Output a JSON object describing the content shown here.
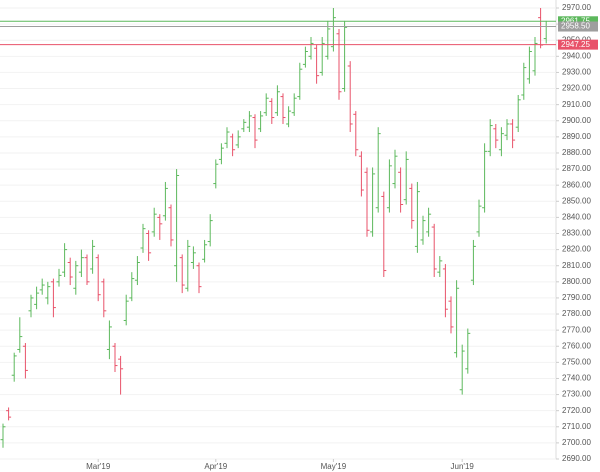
{
  "chart_data": {
    "type": "ohlc",
    "up_color": "#5cb85c",
    "down_color": "#e8526a",
    "ylim": [
      2690,
      2970
    ],
    "yticks": [
      {
        "value": 2690,
        "label": "2690.00"
      },
      {
        "value": 2700,
        "label": "2700.00"
      },
      {
        "value": 2710,
        "label": "2710.00"
      },
      {
        "value": 2720,
        "label": "2720.00"
      },
      {
        "value": 2730,
        "label": "2730.00"
      },
      {
        "value": 2740,
        "label": "2740.00"
      },
      {
        "value": 2750,
        "label": "2750.00"
      },
      {
        "value": 2760,
        "label": "2760.00"
      },
      {
        "value": 2770,
        "label": "2770.00"
      },
      {
        "value": 2780,
        "label": "2780.00"
      },
      {
        "value": 2790,
        "label": "2790.00"
      },
      {
        "value": 2800,
        "label": "2800.00"
      },
      {
        "value": 2810,
        "label": "2810.00"
      },
      {
        "value": 2820,
        "label": "2820.00"
      },
      {
        "value": 2830,
        "label": "2830.00"
      },
      {
        "value": 2840,
        "label": "2840.00"
      },
      {
        "value": 2850,
        "label": "2850.00"
      },
      {
        "value": 2860,
        "label": "2860.00"
      },
      {
        "value": 2870,
        "label": "2870.00"
      },
      {
        "value": 2880,
        "label": "2880.00"
      },
      {
        "value": 2890,
        "label": "2890.00"
      },
      {
        "value": 2900,
        "label": "2900.00"
      },
      {
        "value": 2910,
        "label": "2910.00"
      },
      {
        "value": 2920,
        "label": "2920.00"
      },
      {
        "value": 2930,
        "label": "2930.00"
      },
      {
        "value": 2940,
        "label": "2940.00"
      },
      {
        "value": 2950,
        "label": "2950.00"
      },
      {
        "value": 2960,
        "label": "2960.00"
      },
      {
        "value": 2970,
        "label": "2970.00"
      }
    ],
    "grid": true,
    "price_lines": [
      {
        "value": 2961.75,
        "label": "2961.75",
        "color": "#5cb85c"
      },
      {
        "value": 2958.5,
        "label": "2958.50",
        "color": "#9e9e9e"
      },
      {
        "value": 2947.25,
        "label": "2947.25",
        "color": "#e8526a"
      }
    ],
    "categories": [
      null,
      null,
      null,
      null,
      null,
      null,
      null,
      null,
      null,
      null,
      null,
      null,
      null,
      null,
      null,
      null,
      null,
      "Mar'19",
      null,
      null,
      null,
      null,
      null,
      null,
      null,
      null,
      null,
      null,
      null,
      null,
      null,
      null,
      null,
      null,
      null,
      null,
      null,
      null,
      "Apr'19",
      null,
      null,
      null,
      null,
      null,
      null,
      null,
      null,
      null,
      null,
      null,
      null,
      null,
      null,
      null,
      null,
      null,
      null,
      null,
      null,
      "May'19",
      null,
      null,
      null,
      null,
      null,
      null,
      null,
      null,
      null,
      null,
      null,
      null,
      null,
      null,
      null,
      null,
      null,
      null,
      null,
      null,
      null,
      null,
      "Jun'19",
      null,
      null,
      null,
      null,
      null,
      null,
      null,
      null,
      null,
      null,
      null,
      null,
      null,
      null,
      null
    ],
    "ohlc": [
      [
        2702,
        2712,
        2697,
        2710
      ],
      [
        2720,
        2722,
        2714,
        2716
      ],
      [
        2742,
        2756,
        2738,
        2754
      ],
      [
        2758,
        2778,
        2756,
        2766
      ],
      [
        2760,
        2762,
        2740,
        2745
      ],
      [
        2782,
        2792,
        2778,
        2790
      ],
      [
        2786,
        2797,
        2783,
        2793
      ],
      [
        2795,
        2802,
        2792,
        2798
      ],
      [
        2790,
        2800,
        2786,
        2797
      ],
      [
        2800,
        2802,
        2778,
        2784
      ],
      [
        2800,
        2808,
        2797,
        2804
      ],
      [
        2806,
        2824,
        2803,
        2820
      ],
      [
        2812,
        2815,
        2798,
        2803
      ],
      [
        2796,
        2813,
        2792,
        2810
      ],
      [
        2806,
        2820,
        2803,
        2815
      ],
      [
        2815,
        2817,
        2798,
        2800
      ],
      [
        2808,
        2826,
        2805,
        2822
      ],
      [
        2815,
        2817,
        2788,
        2792
      ],
      [
        2800,
        2802,
        2778,
        2782
      ],
      [
        2758,
        2776,
        2752,
        2772
      ],
      [
        2760,
        2762,
        2744,
        2748
      ],
      [
        2752,
        2754,
        2730,
        2746
      ],
      [
        2776,
        2792,
        2773,
        2788
      ],
      [
        2790,
        2806,
        2788,
        2802
      ],
      [
        2801,
        2816,
        2798,
        2812
      ],
      [
        2821,
        2836,
        2818,
        2833
      ],
      [
        2830,
        2832,
        2813,
        2818
      ],
      [
        2831,
        2846,
        2828,
        2842
      ],
      [
        2840,
        2842,
        2826,
        2836
      ],
      [
        2841,
        2862,
        2838,
        2858
      ],
      [
        2846,
        2848,
        2822,
        2826
      ],
      [
        2810,
        2870,
        2800,
        2866
      ],
      [
        2815,
        2817,
        2793,
        2798
      ],
      [
        2796,
        2826,
        2794,
        2822
      ],
      [
        2812,
        2822,
        2808,
        2818
      ],
      [
        2810,
        2812,
        2793,
        2797
      ],
      [
        2814,
        2826,
        2812,
        2823
      ],
      [
        2825,
        2842,
        2822,
        2838
      ],
      [
        2861,
        2876,
        2858,
        2873
      ],
      [
        2876,
        2886,
        2873,
        2883
      ],
      [
        2886,
        2896,
        2883,
        2893
      ],
      [
        2890,
        2892,
        2878,
        2882
      ],
      [
        2885,
        2894,
        2883,
        2890
      ],
      [
        2895,
        2901,
        2893,
        2899
      ],
      [
        2896,
        2906,
        2893,
        2903
      ],
      [
        2902,
        2904,
        2883,
        2888
      ],
      [
        2895,
        2906,
        2893,
        2903
      ],
      [
        2905,
        2917,
        2903,
        2914
      ],
      [
        2912,
        2914,
        2898,
        2902
      ],
      [
        2905,
        2922,
        2903,
        2918
      ],
      [
        2915,
        2917,
        2898,
        2902
      ],
      [
        2898,
        2909,
        2896,
        2906
      ],
      [
        2905,
        2917,
        2903,
        2914
      ],
      [
        2915,
        2936,
        2913,
        2932
      ],
      [
        2935,
        2946,
        2933,
        2943
      ],
      [
        2940,
        2952,
        2938,
        2948
      ],
      [
        2945,
        2947,
        2923,
        2928
      ],
      [
        2930,
        2952,
        2928,
        2948
      ],
      [
        2940,
        2962,
        2938,
        2957
      ],
      [
        2946,
        2970,
        2943,
        2964
      ],
      [
        2954,
        2957,
        2913,
        2918
      ],
      [
        2920,
        2962,
        2918,
        2958
      ],
      [
        2934,
        2937,
        2893,
        2898
      ],
      [
        2904,
        2906,
        2878,
        2882
      ],
      [
        2878,
        2881,
        2853,
        2857
      ],
      [
        2868,
        2871,
        2828,
        2832
      ],
      [
        2831,
        2871,
        2828,
        2867
      ],
      [
        2846,
        2896,
        2843,
        2892
      ],
      [
        2853,
        2856,
        2803,
        2807
      ],
      [
        2846,
        2876,
        2843,
        2872
      ],
      [
        2861,
        2882,
        2858,
        2878
      ],
      [
        2868,
        2871,
        2843,
        2848
      ],
      [
        2851,
        2881,
        2848,
        2876
      ],
      [
        2858,
        2861,
        2833,
        2838
      ],
      [
        2822,
        2862,
        2818,
        2856
      ],
      [
        2826,
        2841,
        2823,
        2838
      ],
      [
        2831,
        2846,
        2828,
        2842
      ],
      [
        2834,
        2836,
        2803,
        2808
      ],
      [
        2806,
        2816,
        2803,
        2813
      ],
      [
        2808,
        2811,
        2778,
        2783
      ],
      [
        2788,
        2791,
        2768,
        2772
      ],
      [
        2756,
        2801,
        2753,
        2796
      ],
      [
        2733,
        2761,
        2730,
        2757
      ],
      [
        2746,
        2771,
        2743,
        2768
      ],
      [
        2801,
        2826,
        2798,
        2822
      ],
      [
        2831,
        2851,
        2828,
        2847
      ],
      [
        2846,
        2886,
        2843,
        2881
      ],
      [
        2881,
        2901,
        2878,
        2897
      ],
      [
        2895,
        2898,
        2883,
        2888
      ],
      [
        2882,
        2896,
        2878,
        2892
      ],
      [
        2891,
        2901,
        2888,
        2898
      ],
      [
        2898,
        2901,
        2883,
        2888
      ],
      [
        2896,
        2916,
        2893,
        2913
      ],
      [
        2916,
        2936,
        2913,
        2933
      ],
      [
        2926,
        2946,
        2923,
        2943
      ],
      [
        2931,
        2952,
        2928,
        2948
      ],
      [
        2964,
        2970,
        2945,
        2947
      ],
      [
        2951,
        2962,
        2948,
        2958.5
      ]
    ]
  }
}
